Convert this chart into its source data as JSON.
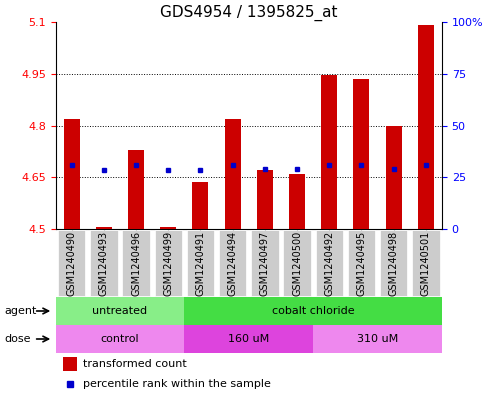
{
  "title": "GDS4954 / 1395825_at",
  "samples": [
    "GSM1240490",
    "GSM1240493",
    "GSM1240496",
    "GSM1240499",
    "GSM1240491",
    "GSM1240494",
    "GSM1240497",
    "GSM1240500",
    "GSM1240492",
    "GSM1240495",
    "GSM1240498",
    "GSM1240501"
  ],
  "transformed_counts": [
    4.82,
    4.505,
    4.73,
    4.505,
    4.635,
    4.82,
    4.67,
    4.66,
    4.945,
    4.935,
    4.8,
    5.09
  ],
  "percentile_ranks": [
    4.685,
    4.67,
    4.685,
    4.67,
    4.67,
    4.685,
    4.675,
    4.675,
    4.685,
    4.685,
    4.675,
    4.685
  ],
  "ymin": 4.5,
  "ymax": 5.1,
  "yticks": [
    4.5,
    4.65,
    4.8,
    4.95,
    5.1
  ],
  "ytick_labels": [
    "4.5",
    "4.65",
    "4.8",
    "4.95",
    "5.1"
  ],
  "grid_lines": [
    4.65,
    4.8,
    4.95
  ],
  "right_yticks": [
    0,
    25,
    50,
    75,
    100
  ],
  "right_ytick_labels": [
    "0",
    "25",
    "50",
    "75",
    "100%"
  ],
  "bar_color": "#cc0000",
  "dot_color": "#0000cc",
  "bar_base": 4.5,
  "agent_groups": [
    {
      "label": "untreated",
      "start": 0,
      "end": 4,
      "color": "#88ee88"
    },
    {
      "label": "cobalt chloride",
      "start": 4,
      "end": 12,
      "color": "#44dd44"
    }
  ],
  "dose_groups": [
    {
      "label": "control",
      "start": 0,
      "end": 4,
      "color": "#ee88ee"
    },
    {
      "label": "160 uM",
      "start": 4,
      "end": 8,
      "color": "#dd44dd"
    },
    {
      "label": "310 uM",
      "start": 8,
      "end": 12,
      "color": "#ee88ee"
    }
  ],
  "legend_bar_color": "#cc0000",
  "legend_dot_color": "#0000cc",
  "legend_bar_label": "transformed count",
  "legend_dot_label": "percentile rank within the sample",
  "title_fontsize": 11,
  "tick_fontsize": 8,
  "sample_label_fontsize": 7,
  "label_fontsize": 8
}
